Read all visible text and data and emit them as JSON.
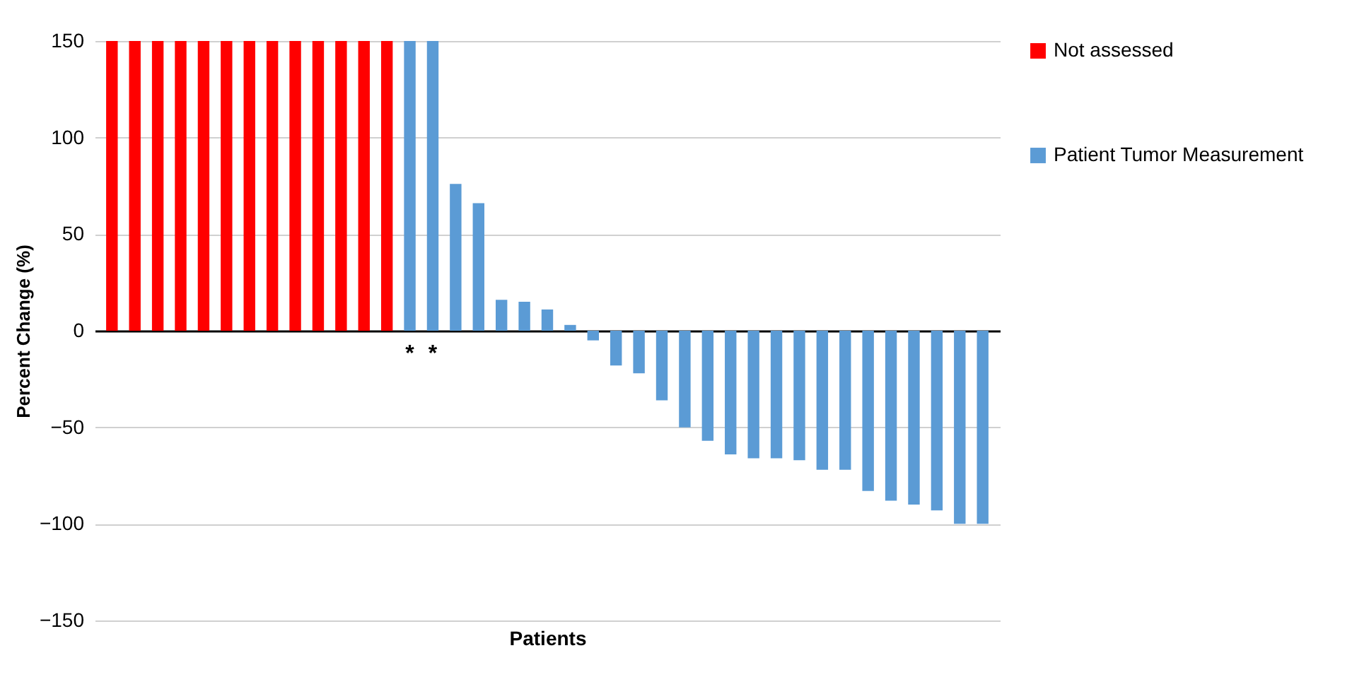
{
  "chart_data": {
    "type": "bar",
    "xlabel": "Patients",
    "ylabel": "Percent Change (%)",
    "categories": [
      null,
      null,
      null,
      null,
      null,
      null,
      null,
      null,
      null,
      null,
      null,
      null,
      null,
      null,
      null,
      null,
      null,
      null,
      null,
      null,
      null,
      null,
      null,
      null,
      null,
      null,
      null,
      null,
      null,
      null,
      null,
      null,
      null,
      null,
      null,
      null,
      null,
      null,
      null
    ],
    "series": [
      {
        "name": "Not assessed",
        "color": "#ff0000",
        "values": [
          150,
          150,
          150,
          150,
          150,
          150,
          150,
          150,
          150,
          150,
          150,
          150,
          150,
          null,
          null,
          null,
          null,
          null,
          null,
          null,
          null,
          null,
          null,
          null,
          null,
          null,
          null,
          null,
          null,
          null,
          null,
          null,
          null,
          null,
          null,
          null,
          null,
          null,
          null
        ]
      },
      {
        "name": "Patient Tumor Measurement",
        "color": "#5b9bd5",
        "values": [
          null,
          null,
          null,
          null,
          null,
          null,
          null,
          null,
          null,
          null,
          null,
          null,
          null,
          150,
          150,
          76,
          66,
          16,
          15,
          11,
          3,
          -5,
          -18,
          -22,
          -36,
          -50,
          -57,
          -64,
          -66,
          -66,
          -67,
          -72,
          -72,
          -83,
          -88,
          -90,
          -93,
          -100,
          -100
        ]
      }
    ],
    "annotations": [
      "*",
      "*"
    ],
    "ylim": [
      -150,
      150
    ],
    "yticks": [
      -150,
      -100,
      -50,
      0,
      50,
      100,
      150
    ],
    "grid": "y",
    "legend": "right"
  }
}
